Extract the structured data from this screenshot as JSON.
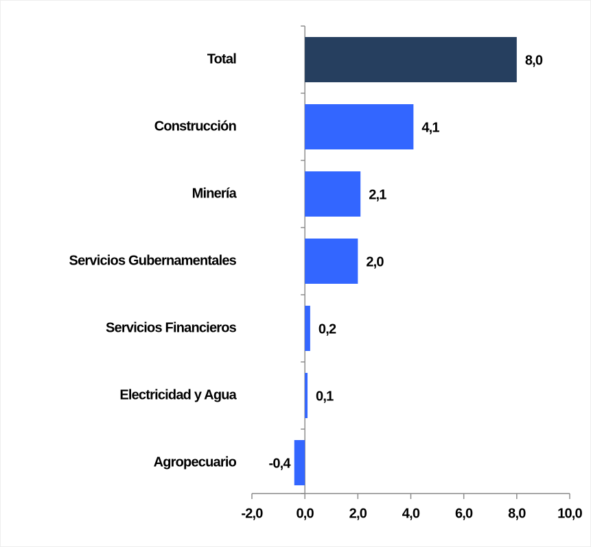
{
  "chart_data": {
    "type": "hbar",
    "categories": [
      "Total",
      "Construcción",
      "Minería",
      "Servicios Gubernamentales",
      "Servicios Financieros",
      "Electricidad y Agua",
      "Agropecuario"
    ],
    "values": [
      8.0,
      4.1,
      2.1,
      2.0,
      0.2,
      0.1,
      -0.4
    ],
    "value_labels": [
      "8,0",
      "4,1",
      "2,1",
      "2,0",
      "0,2",
      "0,1",
      "-0,4"
    ],
    "colors": [
      "#263f5f",
      "#3366ff",
      "#3366ff",
      "#3366ff",
      "#3366ff",
      "#3366ff",
      "#3366ff"
    ],
    "xlim": [
      -2,
      10
    ],
    "xticks": [
      {
        "value": -2,
        "label": "-2,0"
      },
      {
        "value": 0,
        "label": "0,0"
      },
      {
        "value": 2,
        "label": "2,0"
      },
      {
        "value": 4,
        "label": "4,0"
      },
      {
        "value": 6,
        "label": "6,0"
      },
      {
        "value": 8,
        "label": "8,0"
      },
      {
        "value": 10,
        "label": "10,0"
      }
    ],
    "grid": false
  }
}
